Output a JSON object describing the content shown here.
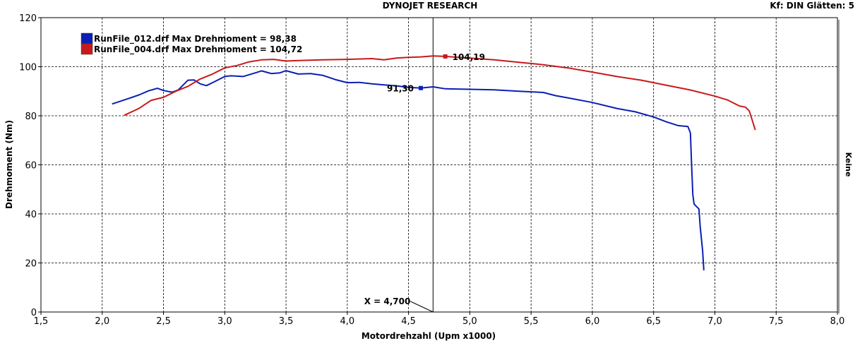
{
  "header": {
    "title": "DYNOJET RESEARCH",
    "right_info": "Kf: DIN  Glätten: 5"
  },
  "right_axis_label": "Keine",
  "colors": {
    "blue": "#0b1fb5",
    "red": "#c81a1a"
  },
  "chart_data": {
    "type": "line",
    "xlabel": "Motordrehzahl (Upm x1000)",
    "ylabel": "Drehmoment (Nm)",
    "xlim": [
      1.5,
      8.0
    ],
    "ylim": [
      0,
      120
    ],
    "xticks": [
      "1,5",
      "2,0",
      "2,5",
      "3,0",
      "3,5",
      "4,0",
      "4,5",
      "5,0",
      "5,5",
      "6,0",
      "6,5",
      "7,0",
      "7,5",
      "8,0"
    ],
    "yticks": [
      "0",
      "20",
      "40",
      "60",
      "80",
      "100",
      "120"
    ],
    "grid": true,
    "legend": "top-left",
    "cursor": {
      "x": 4.7,
      "label": "X = 4,700"
    },
    "series": [
      {
        "name": "RunFile_012.drf Max Drehmoment = 98,38",
        "color": "#0b1fb5",
        "marker": {
          "x": 4.6,
          "y": 91.3,
          "label": "91,30"
        },
        "points": [
          [
            2.08,
            84.8
          ],
          [
            2.2,
            86.8
          ],
          [
            2.3,
            88.5
          ],
          [
            2.38,
            90.2
          ],
          [
            2.45,
            91.2
          ],
          [
            2.5,
            90.3
          ],
          [
            2.57,
            89.6
          ],
          [
            2.62,
            90.5
          ],
          [
            2.7,
            94.5
          ],
          [
            2.75,
            94.6
          ],
          [
            2.8,
            93
          ],
          [
            2.85,
            92.3
          ],
          [
            2.9,
            93.5
          ],
          [
            3.0,
            96
          ],
          [
            3.05,
            96.3
          ],
          [
            3.15,
            96
          ],
          [
            3.25,
            97.5
          ],
          [
            3.3,
            98.3
          ],
          [
            3.38,
            97.2
          ],
          [
            3.45,
            97.5
          ],
          [
            3.5,
            98.4
          ],
          [
            3.6,
            97
          ],
          [
            3.7,
            97.2
          ],
          [
            3.8,
            96.5
          ],
          [
            3.9,
            94.8
          ],
          [
            4.0,
            93.5
          ],
          [
            4.1,
            93.6
          ],
          [
            4.2,
            93
          ],
          [
            4.3,
            92.6
          ],
          [
            4.4,
            92.2
          ],
          [
            4.5,
            91.6
          ],
          [
            4.6,
            91.3
          ],
          [
            4.7,
            91.8
          ],
          [
            4.8,
            91
          ],
          [
            5.0,
            90.8
          ],
          [
            5.2,
            90.6
          ],
          [
            5.4,
            90
          ],
          [
            5.6,
            89.5
          ],
          [
            5.7,
            88.2
          ],
          [
            5.8,
            87.3
          ],
          [
            6.0,
            85.4
          ],
          [
            6.2,
            83
          ],
          [
            6.35,
            81.6
          ],
          [
            6.5,
            79.5
          ],
          [
            6.6,
            77.6
          ],
          [
            6.7,
            76
          ],
          [
            6.78,
            75.6
          ],
          [
            6.8,
            73
          ],
          [
            6.81,
            60
          ],
          [
            6.82,
            48
          ],
          [
            6.83,
            44
          ],
          [
            6.85,
            43
          ],
          [
            6.87,
            42
          ],
          [
            6.88,
            35
          ],
          [
            6.9,
            25
          ],
          [
            6.91,
            17
          ]
        ]
      },
      {
        "name": "RunFile_004.drf Max Drehmoment = 104,72",
        "color": "#c81a1a",
        "marker": {
          "x": 4.8,
          "y": 104.19,
          "label": "104,19"
        },
        "points": [
          [
            2.18,
            80.2
          ],
          [
            2.3,
            83
          ],
          [
            2.4,
            86.3
          ],
          [
            2.5,
            87.5
          ],
          [
            2.6,
            90
          ],
          [
            2.7,
            92
          ],
          [
            2.8,
            95
          ],
          [
            2.9,
            97
          ],
          [
            3.0,
            99.5
          ],
          [
            3.1,
            100.5
          ],
          [
            3.2,
            102
          ],
          [
            3.3,
            102.8
          ],
          [
            3.4,
            103
          ],
          [
            3.5,
            102.3
          ],
          [
            3.6,
            102.5
          ],
          [
            3.8,
            102.8
          ],
          [
            4.0,
            103
          ],
          [
            4.2,
            103.3
          ],
          [
            4.3,
            102.8
          ],
          [
            4.4,
            103.5
          ],
          [
            4.5,
            103.8
          ],
          [
            4.6,
            104
          ],
          [
            4.7,
            104.4
          ],
          [
            4.8,
            104.2
          ],
          [
            5.0,
            103.5
          ],
          [
            5.2,
            102.8
          ],
          [
            5.4,
            101.8
          ],
          [
            5.6,
            100.8
          ],
          [
            5.8,
            99.5
          ],
          [
            6.0,
            97.8
          ],
          [
            6.2,
            96
          ],
          [
            6.4,
            94.5
          ],
          [
            6.6,
            92.5
          ],
          [
            6.8,
            90.5
          ],
          [
            7.0,
            88
          ],
          [
            7.1,
            86.5
          ],
          [
            7.2,
            84
          ],
          [
            7.25,
            83.5
          ],
          [
            7.28,
            82
          ],
          [
            7.3,
            79
          ],
          [
            7.33,
            74.2
          ]
        ]
      }
    ]
  }
}
